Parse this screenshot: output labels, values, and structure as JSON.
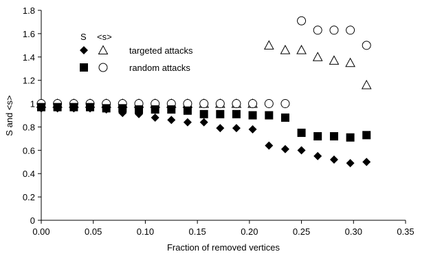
{
  "chart_data": {
    "type": "scatter",
    "title": "",
    "xlabel": "Fraction of removed vertices",
    "ylabel": "S and <s>",
    "xlim": [
      0,
      0.35
    ],
    "ylim": [
      0,
      1.8
    ],
    "xticks": [
      "0.00",
      "0.05",
      "0.10",
      "0.15",
      "0.20",
      "0.25",
      "0.30",
      "0.35"
    ],
    "yticks": [
      "0",
      "0.2",
      "0.4",
      "0.6",
      "0.8",
      "1",
      "1.2",
      "1.4",
      "1.6",
      "1.8"
    ],
    "grid": false,
    "legend": {
      "placement": "top-left",
      "header_S": "S",
      "header_s": "<s>",
      "rows": [
        "targeted attacks",
        "random attacks"
      ]
    },
    "series": [
      {
        "name": "targeted attacks",
        "quantity": "S",
        "marker": "diamond-filled",
        "points": [
          [
            0.0,
            0.96
          ],
          [
            0.0156,
            0.96
          ],
          [
            0.0313,
            0.96
          ],
          [
            0.0469,
            0.96
          ],
          [
            0.0625,
            0.95
          ],
          [
            0.0781,
            0.92
          ],
          [
            0.0938,
            0.91
          ],
          [
            0.1094,
            0.88
          ],
          [
            0.125,
            0.86
          ],
          [
            0.1406,
            0.84
          ],
          [
            0.1563,
            0.84
          ],
          [
            0.1719,
            0.79
          ],
          [
            0.1875,
            0.79
          ],
          [
            0.2031,
            0.78
          ],
          [
            0.2188,
            0.64
          ],
          [
            0.2344,
            0.61
          ],
          [
            0.25,
            0.6
          ],
          [
            0.2656,
            0.55
          ],
          [
            0.2813,
            0.52
          ],
          [
            0.2969,
            0.49
          ],
          [
            0.3125,
            0.5
          ]
        ]
      },
      {
        "name": "targeted attacks",
        "quantity": "<s>",
        "marker": "triangle-open",
        "points": [
          [
            0.0,
            1.0
          ],
          [
            0.0156,
            1.0
          ],
          [
            0.0313,
            1.0
          ],
          [
            0.0469,
            1.0
          ],
          [
            0.0625,
            1.0
          ],
          [
            0.0781,
            1.0
          ],
          [
            0.0938,
            1.0
          ],
          [
            0.1094,
            1.0
          ],
          [
            0.125,
            1.0
          ],
          [
            0.1406,
            1.0
          ],
          [
            0.1563,
            1.0
          ],
          [
            0.1719,
            1.0
          ],
          [
            0.1875,
            1.0
          ],
          [
            0.2031,
            1.0
          ],
          [
            0.2188,
            1.5
          ],
          [
            0.2344,
            1.46
          ],
          [
            0.25,
            1.46
          ],
          [
            0.2656,
            1.4
          ],
          [
            0.2813,
            1.37
          ],
          [
            0.2969,
            1.35
          ],
          [
            0.3125,
            1.16
          ]
        ]
      },
      {
        "name": "random attacks",
        "quantity": "S",
        "marker": "square-filled",
        "points": [
          [
            0.0,
            0.97
          ],
          [
            0.0156,
            0.97
          ],
          [
            0.0313,
            0.97
          ],
          [
            0.0469,
            0.97
          ],
          [
            0.0625,
            0.96
          ],
          [
            0.0781,
            0.96
          ],
          [
            0.0938,
            0.95
          ],
          [
            0.1094,
            0.95
          ],
          [
            0.125,
            0.95
          ],
          [
            0.1406,
            0.94
          ],
          [
            0.1563,
            0.91
          ],
          [
            0.1719,
            0.91
          ],
          [
            0.1875,
            0.91
          ],
          [
            0.2031,
            0.9
          ],
          [
            0.2188,
            0.9
          ],
          [
            0.2344,
            0.88
          ],
          [
            0.25,
            0.75
          ],
          [
            0.2656,
            0.72
          ],
          [
            0.2813,
            0.72
          ],
          [
            0.2969,
            0.71
          ],
          [
            0.3125,
            0.73
          ]
        ]
      },
      {
        "name": "random attacks",
        "quantity": "<s>",
        "marker": "circle-open",
        "points": [
          [
            0.0,
            1.0
          ],
          [
            0.0156,
            1.0
          ],
          [
            0.0313,
            1.0
          ],
          [
            0.0469,
            1.0
          ],
          [
            0.0625,
            1.0
          ],
          [
            0.0781,
            1.0
          ],
          [
            0.0938,
            1.0
          ],
          [
            0.1094,
            1.0
          ],
          [
            0.125,
            1.0
          ],
          [
            0.1406,
            1.0
          ],
          [
            0.1563,
            1.0
          ],
          [
            0.1719,
            1.0
          ],
          [
            0.1875,
            1.0
          ],
          [
            0.2031,
            1.0
          ],
          [
            0.2188,
            1.0
          ],
          [
            0.2344,
            1.0
          ],
          [
            0.25,
            1.71
          ],
          [
            0.2656,
            1.63
          ],
          [
            0.2813,
            1.63
          ],
          [
            0.2969,
            1.63
          ],
          [
            0.3125,
            1.5
          ]
        ]
      }
    ]
  }
}
